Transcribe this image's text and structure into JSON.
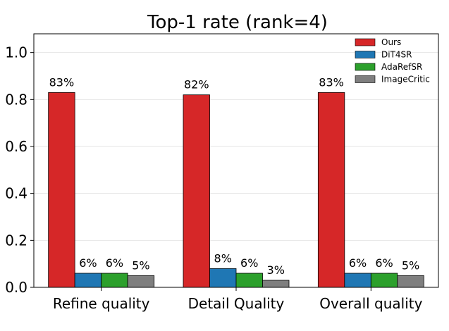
{
  "chart_data": {
    "type": "bar",
    "title": "Top-1 rate (rank=4)",
    "xlabel": "",
    "ylabel": "",
    "categories": [
      "Refine quality",
      "Detail Quality",
      "Overall quality"
    ],
    "series": [
      {
        "name": "Ours",
        "color": "#d62728",
        "values": [
          0.83,
          0.82,
          0.83
        ],
        "labels": [
          "83%",
          "82%",
          "83%"
        ]
      },
      {
        "name": "DiT4SR",
        "color": "#1f77b4",
        "values": [
          0.06,
          0.08,
          0.06
        ],
        "labels": [
          "6%",
          "8%",
          "6%"
        ]
      },
      {
        "name": "AdaRefSR",
        "color": "#2ca02c",
        "values": [
          0.06,
          0.06,
          0.06
        ],
        "labels": [
          "6%",
          "6%",
          "6%"
        ]
      },
      {
        "name": "ImageCritic",
        "color": "#7f7f7f",
        "values": [
          0.05,
          0.03,
          0.05
        ],
        "labels": [
          "5%",
          "3%",
          "5%"
        ]
      }
    ],
    "ylim": [
      0,
      1.08
    ],
    "yticks": [
      0.0,
      0.2,
      0.4,
      0.6,
      0.8,
      1.0
    ],
    "ytick_labels": [
      "0.0",
      "0.2",
      "0.4",
      "0.6",
      "0.8",
      "1.0"
    ],
    "grid": "y",
    "legend": "top-right"
  }
}
